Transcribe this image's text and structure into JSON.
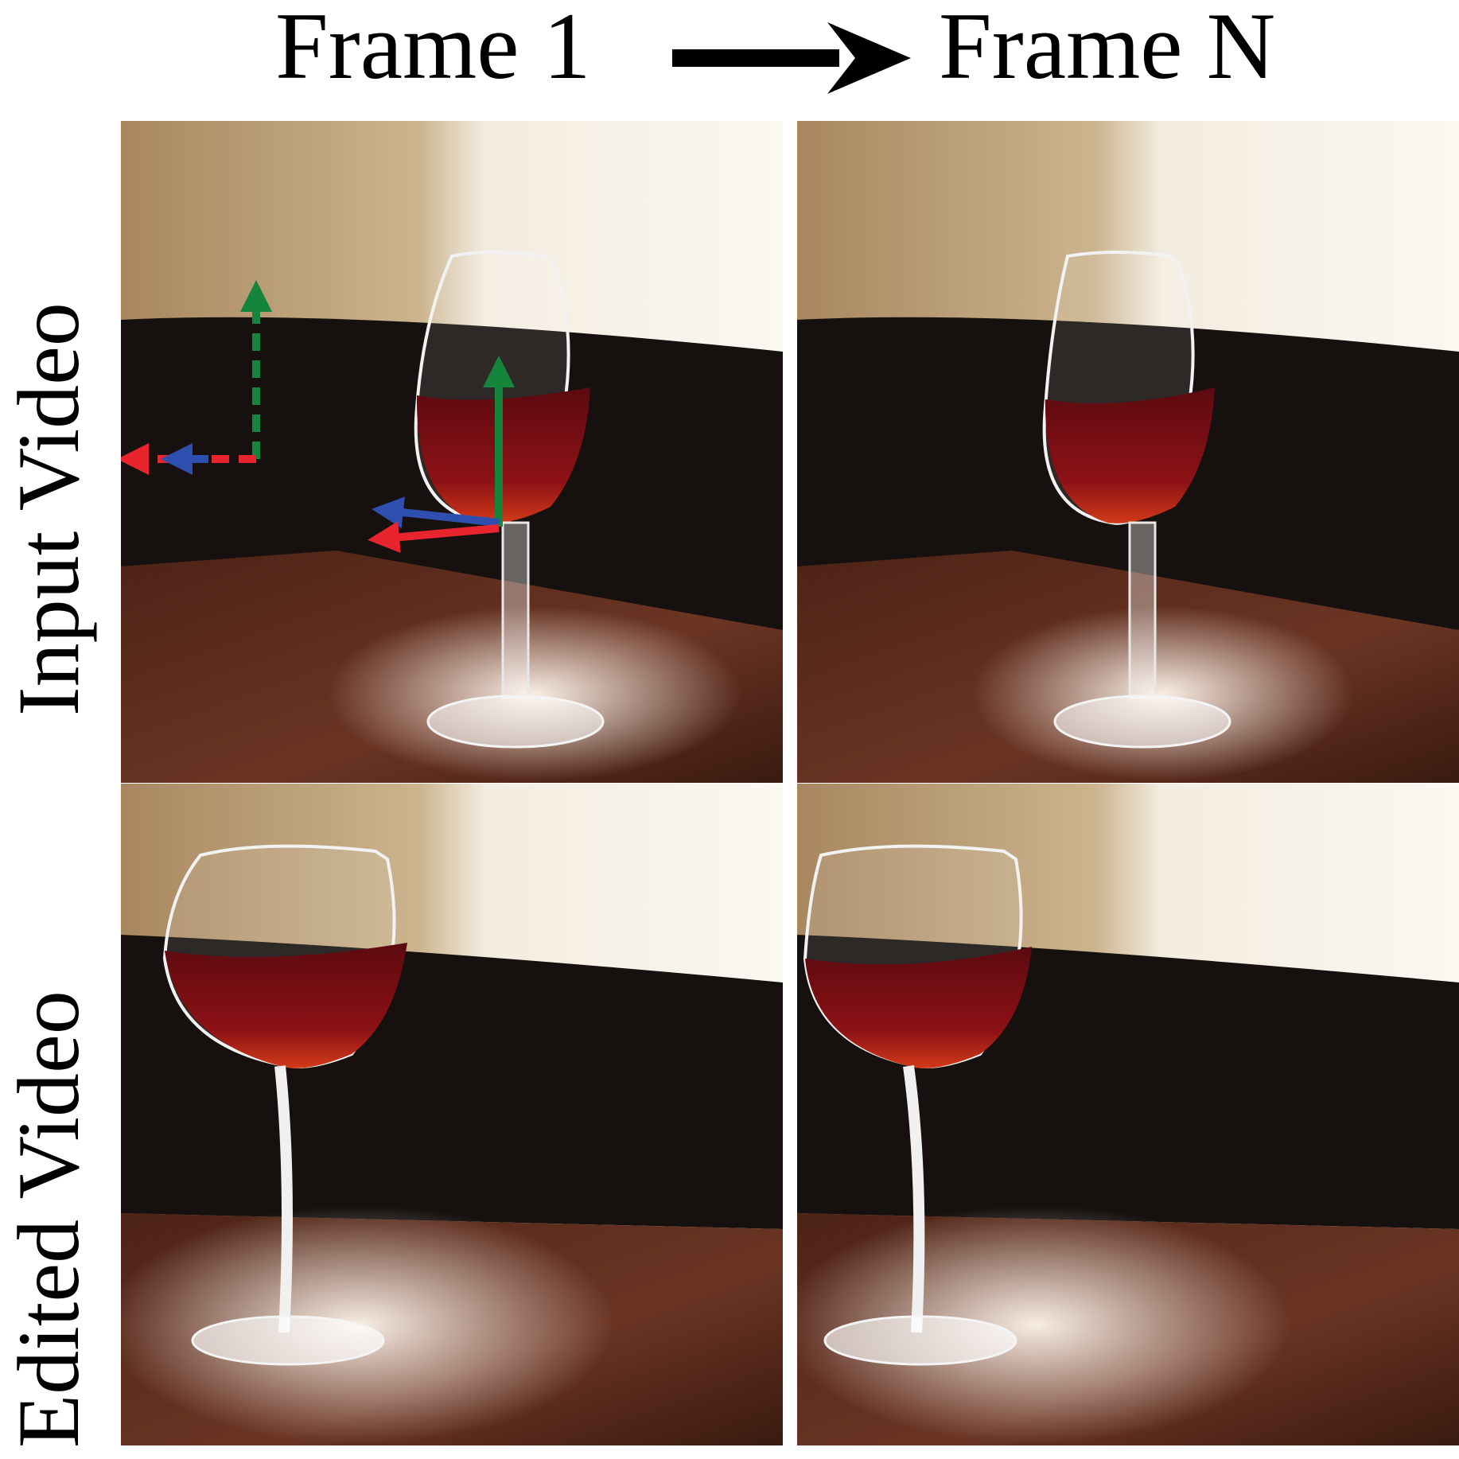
{
  "column_headers": [
    "Frame 1",
    "Frame N"
  ],
  "row_labels": [
    "Input Video",
    "Edited Video"
  ],
  "colors": {
    "axis_x": "#e8242e",
    "axis_y": "#15853b",
    "axis_z": "#2f4fb0",
    "wine": "#7a0d14",
    "couch": "#15100f",
    "table": "#5a2a1c",
    "wall": "#b8956a"
  }
}
